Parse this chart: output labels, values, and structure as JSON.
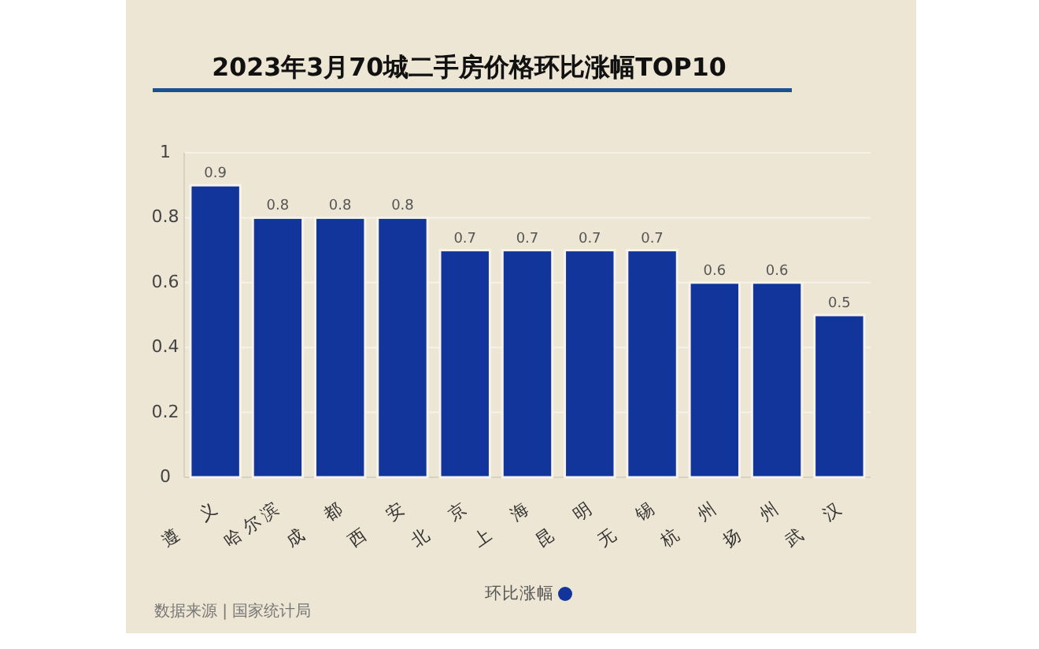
{
  "chart_data": {
    "type": "bar",
    "title": "2023年3月70城二手房价格环比涨幅TOP10",
    "categories": [
      "遵义",
      "哈尔滨",
      "成都",
      "西安",
      "北京",
      "上海",
      "昆明",
      "无锡",
      "杭州",
      "扬州",
      "武汉"
    ],
    "series": [
      {
        "name": "环比涨幅",
        "color": "#11359a",
        "values": [
          0.9,
          0.8,
          0.8,
          0.8,
          0.7,
          0.7,
          0.7,
          0.7,
          0.6,
          0.6,
          0.5
        ]
      }
    ],
    "ylim": [
      0,
      1
    ],
    "yticks": [
      0,
      0.2,
      0.4,
      0.6,
      0.8,
      1
    ],
    "grid": "y",
    "legend": "bottom",
    "data_labels": true,
    "annotations": [
      "数据来源 | 国家统计局"
    ]
  }
}
